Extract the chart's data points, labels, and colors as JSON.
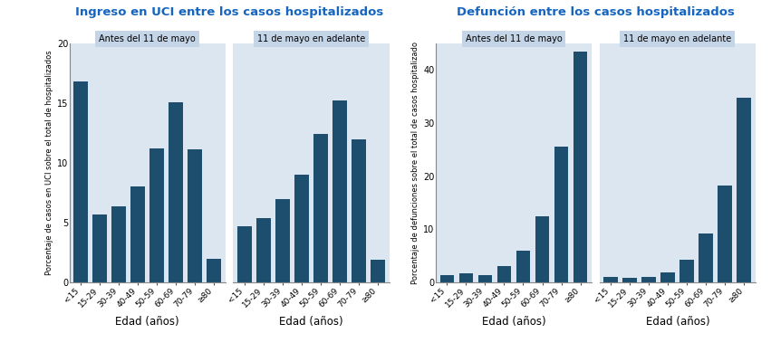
{
  "title_left": "Ingreso en UCI entre los casos hospitalizados",
  "title_right": "Defunción entre los casos hospitalizados",
  "categories": [
    "<15",
    "15-29",
    "30-39",
    "40-49",
    "50-59",
    "60-69",
    "70-79",
    "≥80"
  ],
  "uci_before": [
    16.8,
    5.7,
    6.4,
    8.0,
    11.2,
    15.1,
    11.1,
    2.0
  ],
  "uci_after": [
    4.7,
    5.4,
    7.0,
    9.0,
    12.4,
    15.2,
    12.0,
    1.9
  ],
  "def_before": [
    1.3,
    1.7,
    1.4,
    3.0,
    6.0,
    12.5,
    25.5,
    43.5
  ],
  "def_after": [
    1.1,
    0.8,
    1.0,
    1.8,
    4.2,
    9.2,
    18.2,
    34.8
  ],
  "label_before": "Antes del 11 de mayo",
  "label_after": "11 de mayo en adelante",
  "ylabel_left": "Porcentaje de casos en UCI sobre el total de hospitalizados",
  "ylabel_right": "Porcentaje de defunciones sobre el total de casos hospitalizado",
  "xlabel": "Edad (años)",
  "bar_color": "#1e4e6e",
  "panel_bg": "#dce6f0",
  "panel_label_bg": "#c5d5e8",
  "title_color": "#1565C0",
  "ylim_uci": [
    0,
    20
  ],
  "ylim_def": [
    0,
    45
  ],
  "yticks_uci": [
    0,
    5,
    10,
    15,
    20
  ],
  "yticks_def": [
    0,
    10,
    20,
    30,
    40
  ]
}
